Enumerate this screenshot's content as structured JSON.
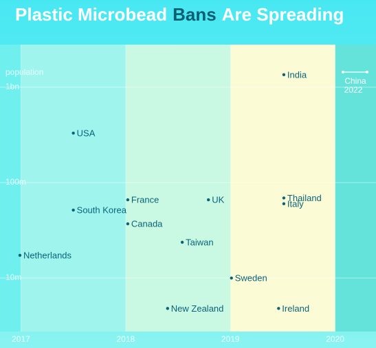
{
  "chart_data": {
    "type": "scatter",
    "title": [
      "Plastic Microbead",
      "Bans",
      "Are Spreading"
    ],
    "title_colors": [
      "#ffffff",
      "#0a5f73",
      "#ffffff"
    ],
    "y_label": "population",
    "annotation": [
      "China",
      "2022"
    ],
    "ylog": true,
    "xlim": [
      2016.8,
      2020.39
    ],
    "ylim": [
      2750000,
      2790000000
    ],
    "xticks": [
      2017,
      2018,
      2019,
      2020
    ],
    "yticks": [
      {
        "value": 1000000000,
        "label": "1bn"
      },
      {
        "value": 100000000,
        "label": "100m"
      },
      {
        "value": 10000000,
        "label": "10m"
      }
    ],
    "band_colors": [
      "#6ff0ef",
      "#9ff5ee",
      "#c9f8e3",
      "#fbfcd6",
      "#63e3da"
    ],
    "series": [
      {
        "color": "#0a6478",
        "labels": [
          "India",
          "USA",
          "France",
          "UK",
          "South Korea",
          "Canada",
          "Taiwan",
          "Netherlands",
          "Thailand",
          "Italy",
          "Sweden",
          "New Zealand",
          "Ireland"
        ],
        "x": [
          2019.51,
          2017.5,
          2018.02,
          2018.79,
          2017.5,
          2018.02,
          2018.54,
          2016.99,
          2019.51,
          2019.51,
          2019.01,
          2018.4,
          2019.46
        ],
        "values": [
          1350000000,
          330000000,
          66000000,
          66000000,
          51500000,
          37000000,
          23700000,
          17300000,
          69000000,
          60000000,
          10000000,
          4800000,
          4800000
        ]
      }
    ]
  }
}
